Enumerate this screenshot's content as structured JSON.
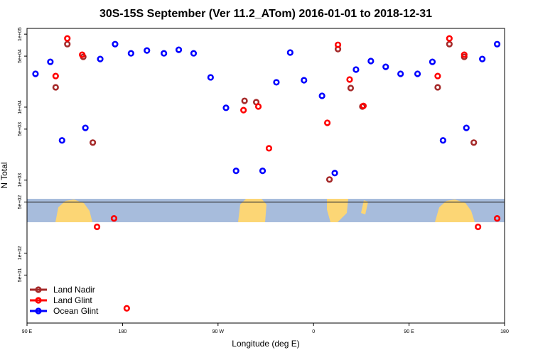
{
  "chart_data": {
    "type": "scatter",
    "title": "30S-15S September (Ver 11.2_ATom)   2016-01-01 to 2018-12-31",
    "x_label": "Longitude (deg E)",
    "y_label": "N Total",
    "log_y": true,
    "legend": "bottom-left",
    "hline": 500,
    "xlim": [
      90,
      540
    ],
    "xticks": [
      {
        "value": 90,
        "label": "90 E"
      },
      180,
      {
        "value": 270,
        "label": "90 W"
      },
      {
        "value": 360,
        "label": "0"
      },
      {
        "value": 450,
        "label": "90 E"
      },
      {
        "value": 540,
        "label": "180"
      }
    ],
    "ylim": [
      11,
      120000
    ],
    "yticks": [
      {
        "value": 100000,
        "label": "1e+05"
      },
      {
        "value": 50000,
        "label": "5e+04"
      },
      {
        "value": 10000,
        "label": "1e+04"
      },
      {
        "value": 5000,
        "label": "5e+03"
      },
      {
        "value": 1000,
        "label": "1e+03"
      },
      {
        "value": 500,
        "label": "5e+02"
      },
      {
        "value": 100,
        "label": "1e+02"
      },
      {
        "value": 50,
        "label": "5e+01"
      }
    ],
    "series": [
      {
        "name": "Land Nadir",
        "color": "#a52a2a",
        "x": [
          117,
          128,
          143,
          152,
          295,
          306,
          375,
          383,
          395,
          406,
          477,
          488,
          502,
          511
        ],
        "values": [
          18700,
          73000,
          48900,
          3270,
          12200,
          11700,
          1020,
          62500,
          18300,
          10200,
          18700,
          73000,
          48900,
          3270
        ]
      },
      {
        "name": "Land Glint",
        "color": "#ff0000",
        "x": [
          117,
          128,
          142,
          156,
          172,
          184,
          294,
          308,
          318,
          373,
          383,
          394,
          407,
          477,
          488,
          502,
          515,
          533
        ],
        "values": [
          26700,
          87400,
          52300,
          229,
          299,
          17.5,
          9100,
          10200,
          2730,
          6100,
          71400,
          23900,
          10400,
          26700,
          87400,
          52300,
          229,
          299
        ]
      },
      {
        "name": "Ocean Glint",
        "color": "#0000ff",
        "x": [
          98,
          112,
          123,
          145,
          159,
          173,
          188,
          203,
          219,
          233,
          247,
          263,
          277.5,
          287,
          312,
          325,
          338,
          351,
          368,
          380,
          400,
          414,
          428,
          442,
          458,
          472,
          482,
          504,
          519,
          533
        ],
        "values": [
          28600,
          41800,
          3500,
          5200,
          45700,
          73000,
          54700,
          59800,
          54700,
          61100,
          54700,
          25600,
          9800,
          1340,
          1340,
          21900,
          56000,
          23400,
          14300,
          1250,
          32700,
          42800,
          35700,
          28600,
          28600,
          41800,
          3500,
          5200,
          45700,
          73000
        ]
      }
    ]
  }
}
